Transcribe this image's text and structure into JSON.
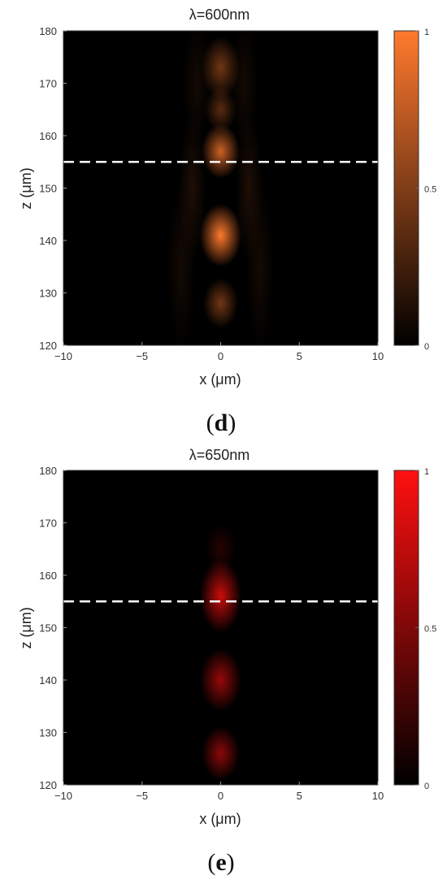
{
  "chart_data": [
    {
      "type": "heatmap",
      "panel_label": "d",
      "title": "λ=600nm",
      "xlabel": "x (μm)",
      "ylabel": "z (μm)",
      "xlim": [
        -10,
        10
      ],
      "ylim": [
        120,
        180
      ],
      "x_ticks": [
        -10,
        -5,
        0,
        5,
        10
      ],
      "x_tick_labels": [
        "−10",
        "−5",
        "0",
        "5",
        "10"
      ],
      "y_ticks": [
        120,
        130,
        140,
        150,
        160,
        170,
        180
      ],
      "y_tick_labels": [
        "120",
        "130",
        "140",
        "150",
        "160",
        "170",
        "180"
      ],
      "colorbar": {
        "min": 0,
        "max": 1,
        "ticks": [
          0,
          0.5,
          1
        ],
        "tick_labels": [
          "0",
          "0.5",
          "1"
        ],
        "color": "#ff7a2e"
      },
      "reference_line": {
        "z": 155,
        "style": "dashed",
        "color": "#ffffff"
      },
      "intensity_peaks": [
        {
          "x": 0,
          "z": 173,
          "intensity": 0.45,
          "sx": 0.55,
          "sz": 3.0
        },
        {
          "x": 0,
          "z": 157,
          "intensity": 0.8,
          "sx": 0.55,
          "sz": 2.6
        },
        {
          "x": 0,
          "z": 141,
          "intensity": 1.0,
          "sx": 0.6,
          "sz": 3.0
        },
        {
          "x": 0,
          "z": 128,
          "intensity": 0.45,
          "sx": 0.5,
          "sz": 2.4
        },
        {
          "x": 0,
          "z": 165,
          "intensity": 0.35,
          "sx": 0.45,
          "sz": 2.2
        },
        {
          "x": -1.8,
          "z": 150,
          "intensity": 0.12,
          "sx": 0.4,
          "sz": 7.0
        },
        {
          "x": 1.8,
          "z": 150,
          "intensity": 0.12,
          "sx": 0.4,
          "sz": 7.0
        },
        {
          "x": -2.5,
          "z": 135,
          "intensity": 0.08,
          "sx": 0.4,
          "sz": 8.0
        },
        {
          "x": 2.5,
          "z": 135,
          "intensity": 0.08,
          "sx": 0.4,
          "sz": 8.0
        },
        {
          "x": -1.5,
          "z": 170,
          "intensity": 0.08,
          "sx": 0.4,
          "sz": 6.0
        },
        {
          "x": 1.5,
          "z": 170,
          "intensity": 0.08,
          "sx": 0.4,
          "sz": 6.0
        }
      ]
    },
    {
      "type": "heatmap",
      "panel_label": "e",
      "title": "λ=650nm",
      "xlabel": "x (μm)",
      "ylabel": "z (μm)",
      "xlim": [
        -10,
        10
      ],
      "ylim": [
        120,
        180
      ],
      "x_ticks": [
        -10,
        -5,
        0,
        5,
        10
      ],
      "x_tick_labels": [
        "−10",
        "−5",
        "0",
        "5",
        "10"
      ],
      "y_ticks": [
        120,
        130,
        140,
        150,
        160,
        170,
        180
      ],
      "y_tick_labels": [
        "120",
        "130",
        "140",
        "150",
        "160",
        "170",
        "180"
      ],
      "colorbar": {
        "min": 0,
        "max": 1,
        "ticks": [
          0,
          0.5,
          1
        ],
        "tick_labels": [
          "0",
          "0.5",
          "1"
        ],
        "color": "#ff1010"
      },
      "reference_line": {
        "z": 155,
        "style": "dashed",
        "color": "#ffffff"
      },
      "intensity_peaks": [
        {
          "x": 0,
          "z": 156,
          "intensity": 0.8,
          "sx": 0.6,
          "sz": 3.5
        },
        {
          "x": 0,
          "z": 140,
          "intensity": 0.6,
          "sx": 0.6,
          "sz": 3.0
        },
        {
          "x": 0,
          "z": 126,
          "intensity": 0.55,
          "sx": 0.55,
          "sz": 2.6
        },
        {
          "x": 0,
          "z": 165,
          "intensity": 0.15,
          "sx": 0.45,
          "sz": 2.5
        }
      ]
    }
  ]
}
